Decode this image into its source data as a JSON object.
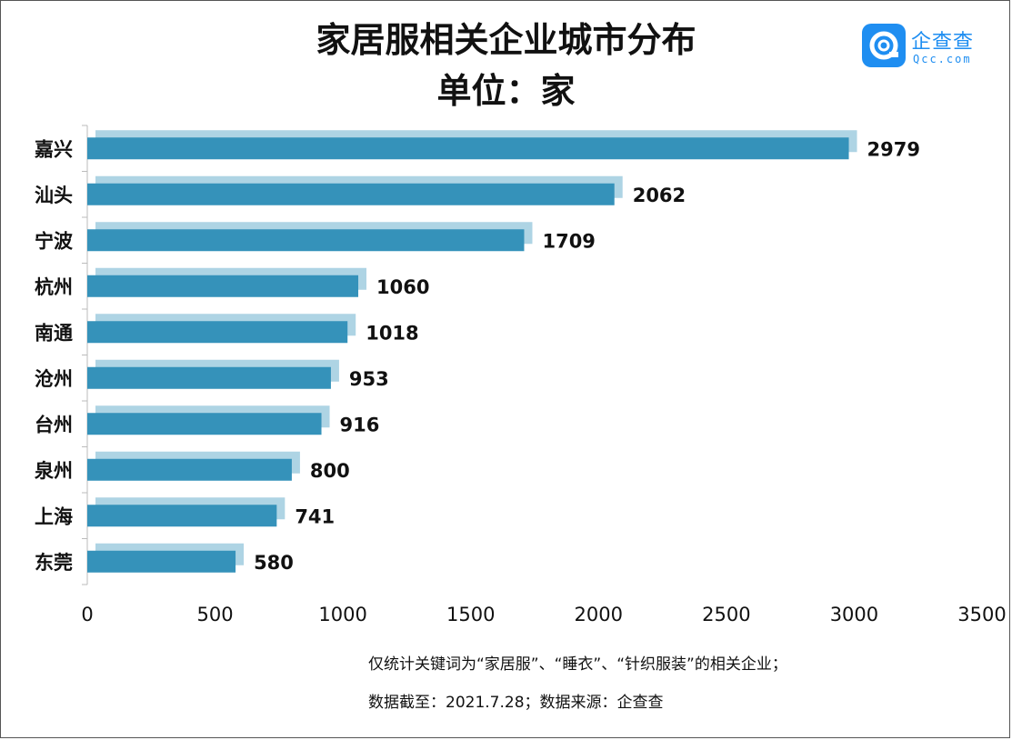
{
  "title": "家居服相关企业城市分布",
  "subtitle": "单位：家",
  "logo": {
    "name": "企查查",
    "sub": "Qcc.com"
  },
  "colors": {
    "bar": "#3592ba",
    "bar_shadow": "#aed4e4",
    "axis": "#bbbbbb",
    "logo": "#1f8ef1"
  },
  "chart_data": {
    "type": "bar",
    "orientation": "horizontal",
    "categories": [
      "嘉兴",
      "汕头",
      "宁波",
      "杭州",
      "南通",
      "沧州",
      "台州",
      "泉州",
      "上海",
      "东莞"
    ],
    "values": [
      2979,
      2062,
      1709,
      1060,
      1018,
      953,
      916,
      800,
      741,
      580
    ],
    "xlim": [
      0,
      3500
    ],
    "xticks": [
      "0",
      "500",
      "1000",
      "1500",
      "2000",
      "2500",
      "3000",
      "3500"
    ],
    "data_labels": true,
    "grid": false
  },
  "notes": {
    "line1": "仅统计关键词为“家居服”、“睡衣”、“针织服装”的相关企业；",
    "line2": "数据截至：2021.7.28；数据来源：企查查"
  }
}
